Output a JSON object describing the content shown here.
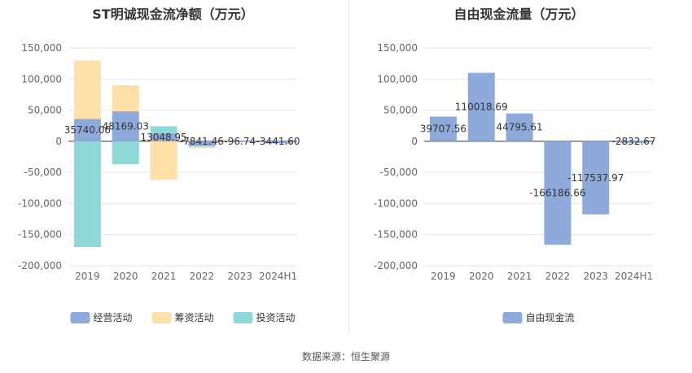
{
  "source_label": "数据来源：恒生聚源",
  "chart_data": [
    {
      "type": "bar",
      "stacked": true,
      "title": "ST明诚现金流净额（万元）",
      "categories": [
        "2019",
        "2020",
        "2021",
        "2022",
        "2023",
        "2024H1"
      ],
      "ylim": [
        -200000,
        150000
      ],
      "yticks": [
        -200000,
        -150000,
        -100000,
        -50000,
        0,
        50000,
        100000,
        150000
      ],
      "ytick_labels": [
        "-200,000",
        "-150,000",
        "-100,000",
        "-50,000",
        "0",
        "50,000",
        "100,000",
        "150,000"
      ],
      "grid": true,
      "legend_position": "bottom",
      "series": [
        {
          "name": "经营活动",
          "color": "#8eaadb",
          "values": [
            35740.06,
            48169.03,
            13048.95,
            -7841.46,
            -96.74,
            -3441.6
          ]
        },
        {
          "name": "筹资活动",
          "color": "#ffe0a8",
          "values": [
            94000,
            42000,
            -62000,
            -1200,
            0,
            0
          ]
        },
        {
          "name": "投资活动",
          "color": "#8ed8d8",
          "values": [
            -170000,
            -37000,
            11000,
            -800,
            0,
            0
          ]
        }
      ],
      "data_labels": [
        "35740.06",
        "48169.03",
        "13048.95",
        "-7841.46",
        "-96.74",
        "-3441.60"
      ]
    },
    {
      "type": "bar",
      "title": "自由现金流量（万元）",
      "categories": [
        "2019",
        "2020",
        "2021",
        "2022",
        "2023",
        "2024H1"
      ],
      "ylim": [
        -200000,
        150000
      ],
      "yticks": [
        -200000,
        -150000,
        -100000,
        -50000,
        0,
        50000,
        100000,
        150000
      ],
      "ytick_labels": [
        "-200,000",
        "-150,000",
        "-100,000",
        "-50,000",
        "0",
        "50,000",
        "100,000",
        "150,000"
      ],
      "grid": true,
      "legend_position": "bottom",
      "series": [
        {
          "name": "自由现金流",
          "color": "#8eaadb",
          "values": [
            39707.56,
            110018.69,
            44795.61,
            -166186.66,
            -117537.97,
            -2832.67
          ]
        }
      ],
      "data_labels": [
        "39707.56",
        "110018.69",
        "44795.61",
        "-166186.66",
        "-117537.97",
        "-2832.67"
      ]
    }
  ]
}
